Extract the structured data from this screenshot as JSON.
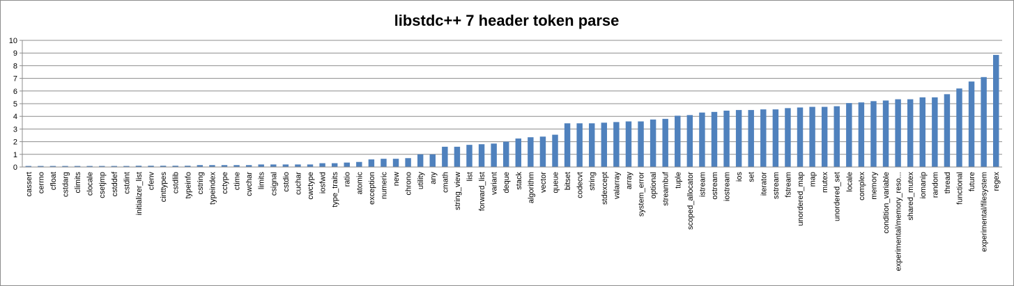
{
  "chart_data": {
    "type": "bar",
    "title": "libstdc++ 7 header token parse",
    "xlabel": "",
    "ylabel": "",
    "ylim": [
      0,
      10
    ],
    "yticks": [
      "0",
      "1",
      "2",
      "3",
      "4",
      "5",
      "6",
      "7",
      "8",
      "9",
      "10"
    ],
    "grid": true,
    "legend": "none",
    "bar_color": "#4f81bd",
    "categories": [
      "cassert",
      "cerrno",
      "cfloat",
      "cstdarg",
      "climits",
      "clocale",
      "csetjmp",
      "cstddef",
      "cstdint",
      "initializer_list",
      "cfenv",
      "cinttypes",
      "cstdlib",
      "typeinfo",
      "cstring",
      "typeindex",
      "cctype",
      "ctime",
      "cwchar",
      "limits",
      "csignal",
      "cstdio",
      "cuchar",
      "cwctype",
      "iosfwd",
      "type_traits",
      "ratio",
      "atomic",
      "exception",
      "numeric",
      "new",
      "chrono",
      "utility",
      "any",
      "cmath",
      "string_view",
      "list",
      "forward_list",
      "variant",
      "deque",
      "stack",
      "algorithm",
      "vector",
      "queue",
      "bitset",
      "codecvt",
      "string",
      "stdexcept",
      "valarray",
      "array",
      "system_error",
      "optional",
      "streambuf",
      "tuple",
      "scoped_allocator",
      "istream",
      "ostream",
      "iostream",
      "ios",
      "set",
      "iterator",
      "sstream",
      "fstream",
      "unordered_map",
      "map",
      "mutex",
      "unordered_set",
      "locale",
      "complex",
      "memory",
      "condition_variable",
      "experimental/memory_reso...",
      "shared_mutex",
      "iomanip",
      "random",
      "thread",
      "functional",
      "future",
      "experimental/filesystem",
      "regex"
    ],
    "values": [
      0.08,
      0.08,
      0.08,
      0.08,
      0.08,
      0.08,
      0.08,
      0.08,
      0.08,
      0.1,
      0.1,
      0.1,
      0.1,
      0.1,
      0.15,
      0.15,
      0.15,
      0.15,
      0.15,
      0.2,
      0.2,
      0.2,
      0.2,
      0.2,
      0.3,
      0.3,
      0.35,
      0.4,
      0.6,
      0.65,
      0.65,
      0.7,
      1.0,
      1.0,
      1.6,
      1.6,
      1.75,
      1.8,
      1.85,
      2.0,
      2.25,
      2.35,
      2.4,
      2.55,
      3.45,
      3.45,
      3.45,
      3.5,
      3.55,
      3.6,
      3.6,
      3.75,
      3.8,
      4.05,
      4.1,
      4.3,
      4.35,
      4.45,
      4.5,
      4.5,
      4.55,
      4.55,
      4.65,
      4.7,
      4.75,
      4.75,
      4.8,
      5.05,
      5.1,
      5.2,
      5.25,
      5.35,
      5.35,
      5.5,
      5.5,
      5.75,
      6.2,
      6.75,
      7.1,
      8.85
    ]
  }
}
